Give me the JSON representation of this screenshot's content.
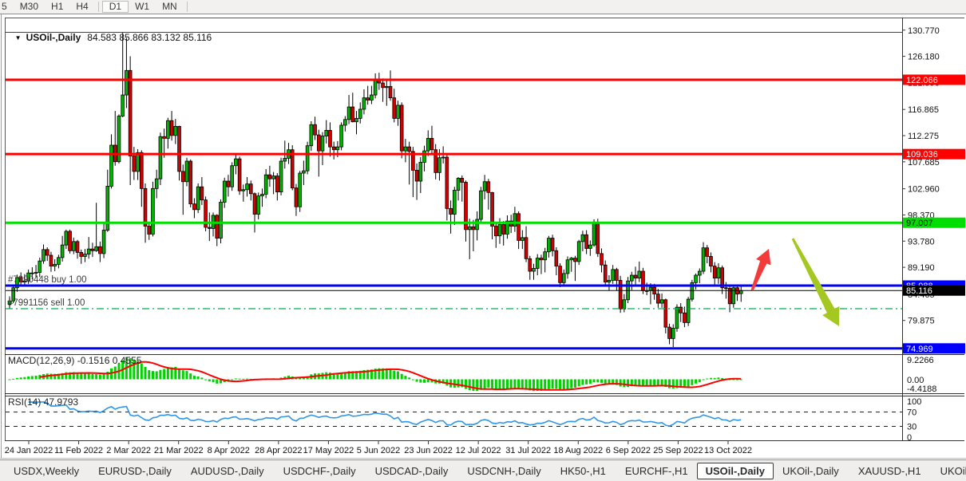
{
  "colors": {
    "candle_up": "#00b300",
    "candle_down": "#d40000",
    "wick": "#000000",
    "macd_hist": "#00d200",
    "macd_signal": "#ff0000",
    "rsi_line": "#2f96e8",
    "level_red": "#ff0000",
    "level_green": "#00dd00",
    "level_blue": "#0000ff",
    "current_price_line": "#000000",
    "order_text": "#3c3c3c",
    "arrow_up": "#f43b3b",
    "arrow_down": "#a4c821"
  },
  "toolbar": {
    "timeframes": [
      "5",
      "M30",
      "H1",
      "H4",
      "|",
      "D1",
      "W1",
      "MN",
      "|"
    ],
    "active": "D1"
  },
  "chart": {
    "title": {
      "dropdown_icon": "▼",
      "symbol": "USOil-,Daily",
      "ohlc": "84.583 85.866 83.132 85.116"
    },
    "hlines": [
      {
        "price": 122.066,
        "label": "122.066",
        "color": "#ff0000",
        "width": 3,
        "badge_bg": "#ff0000",
        "badge_fg": "#ffffff"
      },
      {
        "price": 109.036,
        "label": "109.036",
        "color": "#ff0000",
        "width": 3,
        "badge_bg": "#ff0000",
        "badge_fg": "#ffffff"
      },
      {
        "price": 97.007,
        "label": "97.007",
        "color": "#00dd00",
        "width": 3,
        "badge_bg": "#00dd00",
        "badge_fg": "#000000"
      },
      {
        "price": 85.988,
        "label": "85.988",
        "color": "#0000ff",
        "width": 3,
        "badge_bg": "#0000ff",
        "badge_fg": "#ffffff"
      },
      {
        "price": 74.969,
        "label": "74.969",
        "color": "#0000ff",
        "width": 3,
        "badge_bg": "#0000ff",
        "badge_fg": "#ffffff"
      }
    ],
    "current_price": {
      "value": 85.116,
      "label": "85.116",
      "badge_bg": "#000000",
      "badge_fg": "#ffffff"
    },
    "orders": [
      {
        "id": "buy",
        "label": "#7990448 buy 1.00",
        "price": 85.988,
        "line": false
      },
      {
        "id": "sell",
        "label": "#7991156 sell 1.00",
        "price": 81.93,
        "line": true,
        "line_color": "#00b050"
      }
    ],
    "price_ticks": [
      "130.770",
      "126.180",
      "121.590",
      "116.865",
      "112.275",
      "107.685",
      "102.960",
      "98.370",
      "93.780",
      "89.190",
      "84.465",
      "79.875"
    ],
    "dates": [
      "24 Jan 2022",
      "11 Feb 2022",
      "2 Mar 2022",
      "21 Mar 2022",
      "8 Apr 2022",
      "28 Apr 2022",
      "17 May 2022",
      "5 Jun 2022",
      "23 Jun 2022",
      "12 Jul 2022",
      "31 Jul 2022",
      "18 Aug 2022",
      "6 Sep 2022",
      "25 Sep 2022",
      "13 Oct 2022"
    ],
    "arrows": [
      {
        "name": "up-trend-arrow",
        "color": "#f43b3b",
        "tail": [
          942,
          364
        ],
        "tip": [
          963,
          312
        ],
        "shaft": 4.5,
        "head_w": 10,
        "head_l": 18
      },
      {
        "name": "down-trend-arrow",
        "color": "#a4c821",
        "tail": [
          993,
          299
        ],
        "tip": [
          1051,
          409
        ],
        "shaft": 5.5,
        "head_w": 12,
        "head_l": 22
      }
    ]
  },
  "macd_panel": {
    "label": "MACD(12,26,9) -0.1516 0.4555",
    "axis": [
      {
        "text": "9.2266",
        "y": 451
      },
      {
        "text": "0.00",
        "y": 476
      },
      {
        "text": "-4.4188",
        "y": 487
      }
    ]
  },
  "rsi_panel": {
    "label": "RSI(14) 47.9793",
    "levels": [
      70,
      30
    ],
    "axis": [
      {
        "text": "100",
        "value": 100
      },
      {
        "text": "70",
        "value": 70
      },
      {
        "text": "30",
        "value": 30
      },
      {
        "text": "0",
        "value": 0
      }
    ]
  },
  "tabs": {
    "items": [
      "USDX,Weekly",
      "EURUSD-,Daily",
      "AUDUSD-,Daily",
      "USDCHF-,Daily",
      "USDCAD-,Daily",
      "USDCNH-,Daily",
      "HK50-,H1",
      "EURCHF-,H1",
      "USOil-,Daily",
      "UKOil-,Daily",
      "XAUUSD-,H1",
      "UKOil-,Daily"
    ],
    "active": "USOil-,Daily",
    "scroll_left_icon": "◂",
    "scroll_right_icon": "▸"
  },
  "chart_data": {
    "type": "candlestick",
    "symbol": "USOil",
    "timeframe": "Daily",
    "title": "USOil-,Daily 84.583 85.866 83.132 85.116",
    "ohlc_display": [
      84.583,
      85.866,
      83.132,
      85.116
    ],
    "x_range": [
      "24 Jan 2022",
      "21 Oct 2022"
    ],
    "y_axis_visible_range": [
      73.7,
      132.4
    ],
    "indicators": [
      {
        "name": "MACD",
        "params": [
          12,
          26,
          9
        ],
        "current": [
          -0.1516,
          0.4555
        ],
        "panel_range": [
          -4.4188,
          9.2266
        ]
      },
      {
        "name": "RSI",
        "params": [
          14
        ],
        "current": 47.9793,
        "levels": [
          30,
          70
        ],
        "panel_range": [
          0,
          100
        ]
      }
    ],
    "candles": [
      [
        82.7,
        84.1,
        81.9,
        83.3
      ],
      [
        83.3,
        86.0,
        82.9,
        85.6
      ],
      [
        85.6,
        87.9,
        84.9,
        87.4
      ],
      [
        87.4,
        88.3,
        85.8,
        86.6
      ],
      [
        86.6,
        88.0,
        85.9,
        86.8
      ],
      [
        86.8,
        88.8,
        86.3,
        88.2
      ],
      [
        88.2,
        89.2,
        87.1,
        88.2
      ],
      [
        88.2,
        89.6,
        87.4,
        88.3
      ],
      [
        88.3,
        90.9,
        87.5,
        90.3
      ],
      [
        90.3,
        93.2,
        89.8,
        92.3
      ],
      [
        92.3,
        92.7,
        90.3,
        91.3
      ],
      [
        91.3,
        91.9,
        88.4,
        89.4
      ],
      [
        89.4,
        90.6,
        88.5,
        89.7
      ],
      [
        89.7,
        91.4,
        89.0,
        90.9
      ],
      [
        90.9,
        94.7,
        90.2,
        93.1
      ],
      [
        93.1,
        95.8,
        92.4,
        95.5
      ],
      [
        95.5,
        95.8,
        91.6,
        92.1
      ],
      [
        92.1,
        94.4,
        91.5,
        93.7
      ],
      [
        93.7,
        94.0,
        90.7,
        91.8
      ],
      [
        91.8,
        92.3,
        89.8,
        91.1
      ],
      [
        91.1,
        92.4,
        90.1,
        91.5
      ],
      [
        91.5,
        94.5,
        90.7,
        92.4
      ],
      [
        92.4,
        93.5,
        91.0,
        92.1
      ],
      [
        92.1,
        100.5,
        91.9,
        92.8
      ],
      [
        92.8,
        93.7,
        90.1,
        91.6
      ],
      [
        91.6,
        97.0,
        90.8,
        95.7
      ],
      [
        95.7,
        106.3,
        95.4,
        103.4
      ],
      [
        103.4,
        112.5,
        103.0,
        110.6
      ],
      [
        110.6,
        116.6,
        107.0,
        107.7
      ],
      [
        107.7,
        116.0,
        107.4,
        115.7
      ],
      [
        115.7,
        130.3,
        115.5,
        119.4
      ],
      [
        119.4,
        129.4,
        117.1,
        123.7
      ],
      [
        123.7,
        126.2,
        103.6,
        108.7
      ],
      [
        108.7,
        110.3,
        104.5,
        106.0
      ],
      [
        106.0,
        109.9,
        104.5,
        109.3
      ],
      [
        109.3,
        109.7,
        99.8,
        103.0
      ],
      [
        103.0,
        103.9,
        93.5,
        96.4
      ],
      [
        96.4,
        97.1,
        94.0,
        95.0
      ],
      [
        95.0,
        104.2,
        94.6,
        103.0
      ],
      [
        103.0,
        106.3,
        101.3,
        104.7
      ],
      [
        104.7,
        112.8,
        103.6,
        112.1
      ],
      [
        112.1,
        113.5,
        108.4,
        111.8
      ],
      [
        111.8,
        115.4,
        110.0,
        114.9
      ],
      [
        114.9,
        116.6,
        111.4,
        112.3
      ],
      [
        112.3,
        115.2,
        110.8,
        113.9
      ],
      [
        113.9,
        114.0,
        104.4,
        106.0
      ],
      [
        106.0,
        107.2,
        98.4,
        104.2
      ],
      [
        104.2,
        108.4,
        103.4,
        107.8
      ],
      [
        107.8,
        108.1,
        99.7,
        100.3
      ],
      [
        100.3,
        101.3,
        97.8,
        99.3
      ],
      [
        99.3,
        103.9,
        98.7,
        103.3
      ],
      [
        103.3,
        105.0,
        100.1,
        101.0
      ],
      [
        101.0,
        101.6,
        95.5,
        96.2
      ],
      [
        96.2,
        98.8,
        93.8,
        96.0
      ],
      [
        96.0,
        98.8,
        94.6,
        98.3
      ],
      [
        98.3,
        98.5,
        92.9,
        94.3
      ],
      [
        94.3,
        101.1,
        93.4,
        100.6
      ],
      [
        100.6,
        104.9,
        99.6,
        104.3
      ],
      [
        104.3,
        105.4,
        101.6,
        103.3
      ],
      [
        103.3,
        107.6,
        102.6,
        107.0
      ],
      [
        107.0,
        109.2,
        105.5,
        108.2
      ],
      [
        108.2,
        108.6,
        101.9,
        102.6
      ],
      [
        102.6,
        103.7,
        100.7,
        102.8
      ],
      [
        102.8,
        105.0,
        101.6,
        103.8
      ],
      [
        103.8,
        104.4,
        100.9,
        102.1
      ],
      [
        102.1,
        102.3,
        95.3,
        98.5
      ],
      [
        98.5,
        102.3,
        97.6,
        101.7
      ],
      [
        101.7,
        103.0,
        99.8,
        102.0
      ],
      [
        102.0,
        106.4,
        101.3,
        105.4
      ],
      [
        105.4,
        107.0,
        103.3,
        104.7
      ],
      [
        104.7,
        105.9,
        102.0,
        105.2
      ],
      [
        105.2,
        105.7,
        100.9,
        102.4
      ],
      [
        102.4,
        108.4,
        101.8,
        107.8
      ],
      [
        107.8,
        111.4,
        106.5,
        108.3
      ],
      [
        108.3,
        111.0,
        107.3,
        109.8
      ],
      [
        109.8,
        110.6,
        102.7,
        103.1
      ],
      [
        103.1,
        103.8,
        98.2,
        99.8
      ],
      [
        99.8,
        106.1,
        98.9,
        105.7
      ],
      [
        105.7,
        107.9,
        103.6,
        106.1
      ],
      [
        106.1,
        111.2,
        105.5,
        110.5
      ],
      [
        110.5,
        114.8,
        109.6,
        114.2
      ],
      [
        114.2,
        115.6,
        111.5,
        112.4
      ],
      [
        112.4,
        113.3,
        105.1,
        109.6
      ],
      [
        109.6,
        112.9,
        107.1,
        112.2
      ],
      [
        112.2,
        115.0,
        110.9,
        113.2
      ],
      [
        113.2,
        114.6,
        108.6,
        110.3
      ],
      [
        110.3,
        111.2,
        108.1,
        109.8
      ],
      [
        109.8,
        111.3,
        108.5,
        110.3
      ],
      [
        110.3,
        114.6,
        109.7,
        114.1
      ],
      [
        114.1,
        115.7,
        113.0,
        115.1
      ],
      [
        115.1,
        119.4,
        114.3,
        117.3
      ],
      [
        117.3,
        119.8,
        114.6,
        114.7
      ],
      [
        114.7,
        116.6,
        112.5,
        115.3
      ],
      [
        115.3,
        118.1,
        114.4,
        116.9
      ],
      [
        116.9,
        120.4,
        116.0,
        118.9
      ],
      [
        118.9,
        121.0,
        117.7,
        118.5
      ],
      [
        118.5,
        121.0,
        117.8,
        119.4
      ],
      [
        119.4,
        123.2,
        118.8,
        122.1
      ],
      [
        122.1,
        123.3,
        120.3,
        121.5
      ],
      [
        121.5,
        122.3,
        118.2,
        120.7
      ],
      [
        120.7,
        122.0,
        117.5,
        120.9
      ],
      [
        120.9,
        123.7,
        118.4,
        118.9
      ],
      [
        118.9,
        120.5,
        114.6,
        115.3
      ],
      [
        115.3,
        118.4,
        114.0,
        117.6
      ],
      [
        117.6,
        118.1,
        108.3,
        109.6
      ],
      [
        109.6,
        111.7,
        107.6,
        110.3
      ],
      [
        110.3,
        111.2,
        103.7,
        109.5
      ],
      [
        109.5,
        110.3,
        101.5,
        106.2
      ],
      [
        106.2,
        107.4,
        101.0,
        104.3
      ],
      [
        104.3,
        108.5,
        102.2,
        107.6
      ],
      [
        107.6,
        110.5,
        106.0,
        109.6
      ],
      [
        109.6,
        113.2,
        108.7,
        111.8
      ],
      [
        111.8,
        114.0,
        108.9,
        109.8
      ],
      [
        109.8,
        110.8,
        104.6,
        105.8
      ],
      [
        105.8,
        109.9,
        104.4,
        108.4
      ],
      [
        108.4,
        110.4,
        107.4,
        108.5
      ],
      [
        108.5,
        108.9,
        97.4,
        99.5
      ],
      [
        99.5,
        100.9,
        95.1,
        98.5
      ],
      [
        98.5,
        103.3,
        96.6,
        102.7
      ],
      [
        102.7,
        105.0,
        100.9,
        104.8
      ],
      [
        104.8,
        105.3,
        100.7,
        104.1
      ],
      [
        104.1,
        104.4,
        93.7,
        95.8
      ],
      [
        95.8,
        97.7,
        90.6,
        96.3
      ],
      [
        96.3,
        97.5,
        92.0,
        95.8
      ],
      [
        95.8,
        99.0,
        93.9,
        97.6
      ],
      [
        97.6,
        103.3,
        97.1,
        102.6
      ],
      [
        102.6,
        105.4,
        101.1,
        104.2
      ],
      [
        104.2,
        104.7,
        99.3,
        102.3
      ],
      [
        102.3,
        102.4,
        94.1,
        96.4
      ],
      [
        96.4,
        97.0,
        92.6,
        94.7
      ],
      [
        94.7,
        97.8,
        93.3,
        96.7
      ],
      [
        96.7,
        97.3,
        93.0,
        95.0
      ],
      [
        95.0,
        98.3,
        94.2,
        97.3
      ],
      [
        97.3,
        98.4,
        95.2,
        96.4
      ],
      [
        96.4,
        99.8,
        95.4,
        98.6
      ],
      [
        98.6,
        99.0,
        92.4,
        93.9
      ],
      [
        93.9,
        95.7,
        92.4,
        94.4
      ],
      [
        94.4,
        96.4,
        90.1,
        90.7
      ],
      [
        90.7,
        91.2,
        87.0,
        88.5
      ],
      [
        88.5,
        89.8,
        87.0,
        89.0
      ],
      [
        89.0,
        91.5,
        87.8,
        90.8
      ],
      [
        90.8,
        91.4,
        88.0,
        90.5
      ],
      [
        90.5,
        92.6,
        88.3,
        91.9
      ],
      [
        91.9,
        94.7,
        90.9,
        94.3
      ],
      [
        94.3,
        94.9,
        91.1,
        92.1
      ],
      [
        92.1,
        92.7,
        87.8,
        89.4
      ],
      [
        89.4,
        89.9,
        85.7,
        86.5
      ],
      [
        86.5,
        88.8,
        85.9,
        88.1
      ],
      [
        88.1,
        91.1,
        87.2,
        90.5
      ],
      [
        90.5,
        91.0,
        88.4,
        90.8
      ],
      [
        90.8,
        91.2,
        86.8,
        90.2
      ],
      [
        90.2,
        94.0,
        89.6,
        93.7
      ],
      [
        93.7,
        95.6,
        92.0,
        94.9
      ],
      [
        94.9,
        95.7,
        91.5,
        92.5
      ],
      [
        92.5,
        93.9,
        91.2,
        93.1
      ],
      [
        93.1,
        97.6,
        92.8,
        97.0
      ],
      [
        97.0,
        97.7,
        91.0,
        91.6
      ],
      [
        91.6,
        92.5,
        88.3,
        89.6
      ],
      [
        89.6,
        90.4,
        86.0,
        86.6
      ],
      [
        86.6,
        87.8,
        85.1,
        86.9
      ],
      [
        86.9,
        89.6,
        86.3,
        88.8
      ],
      [
        88.8,
        89.1,
        85.1,
        86.9
      ],
      [
        86.9,
        87.7,
        81.2,
        81.9
      ],
      [
        81.9,
        84.5,
        81.3,
        83.5
      ],
      [
        83.5,
        87.5,
        82.9,
        86.8
      ],
      [
        86.8,
        88.4,
        85.2,
        87.8
      ],
      [
        87.8,
        89.3,
        85.9,
        87.3
      ],
      [
        87.3,
        90.2,
        86.6,
        88.5
      ],
      [
        88.5,
        89.1,
        84.5,
        85.1
      ],
      [
        85.1,
        86.5,
        84.3,
        85.1
      ],
      [
        85.1,
        86.4,
        82.7,
        85.7
      ],
      [
        85.7,
        86.3,
        83.5,
        84.5
      ],
      [
        84.5,
        85.4,
        82.1,
        82.9
      ],
      [
        82.9,
        84.6,
        82.1,
        83.5
      ],
      [
        83.5,
        83.7,
        77.6,
        78.7
      ],
      [
        78.7,
        79.3,
        75.7,
        76.7
      ],
      [
        76.7,
        79.2,
        75.2,
        78.5
      ],
      [
        78.5,
        82.7,
        77.9,
        82.2
      ],
      [
        82.2,
        82.9,
        79.6,
        81.2
      ],
      [
        81.2,
        82.3,
        78.7,
        79.5
      ],
      [
        79.5,
        84.0,
        78.9,
        83.6
      ],
      [
        83.6,
        87.0,
        83.2,
        86.5
      ],
      [
        86.5,
        88.1,
        85.3,
        87.8
      ],
      [
        87.8,
        89.0,
        86.4,
        88.5
      ],
      [
        88.5,
        93.6,
        88.0,
        92.6
      ],
      [
        92.6,
        93.1,
        89.9,
        91.1
      ],
      [
        91.1,
        91.8,
        88.3,
        89.4
      ],
      [
        89.4,
        90.1,
        85.9,
        87.3
      ],
      [
        87.3,
        89.9,
        86.3,
        89.1
      ],
      [
        89.1,
        89.5,
        84.5,
        85.6
      ],
      [
        85.6,
        86.6,
        83.7,
        85.5
      ],
      [
        85.5,
        86.0,
        81.3,
        82.8
      ],
      [
        82.8,
        85.8,
        82.1,
        85.6
      ],
      [
        85.6,
        86.1,
        83.3,
        84.5
      ],
      [
        84.583,
        85.866,
        83.132,
        85.116
      ]
    ]
  }
}
